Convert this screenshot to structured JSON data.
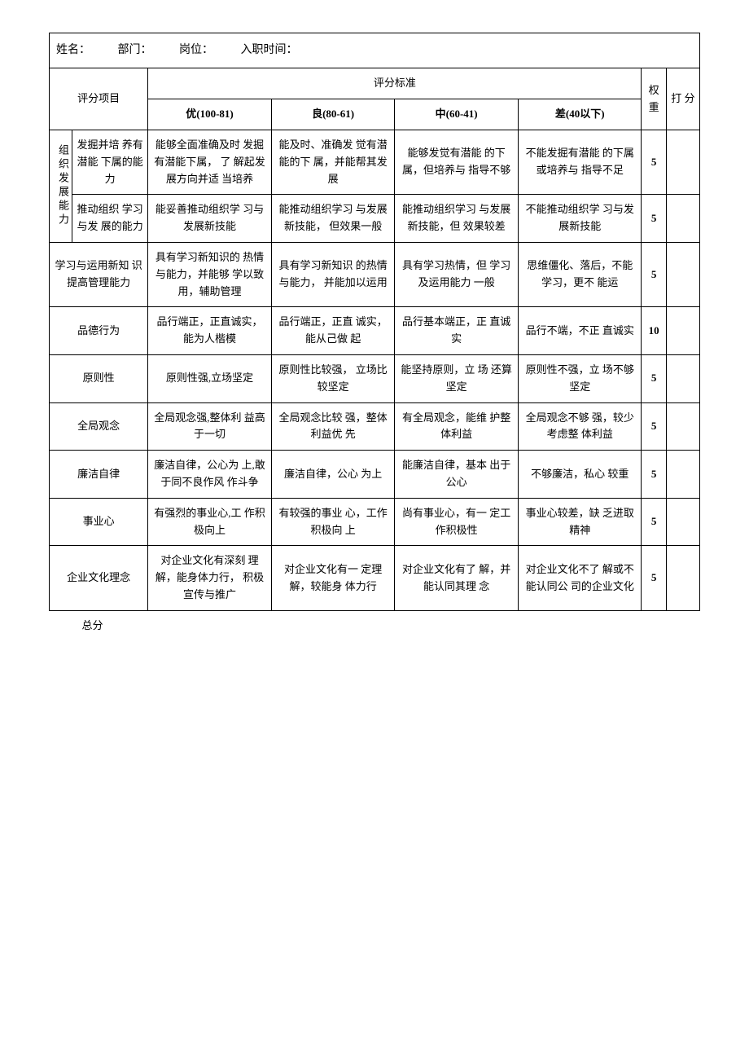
{
  "header": {
    "name_label": "姓名：",
    "dept_label": "部门：",
    "post_label": "岗位：",
    "hire_label": "入职时间："
  },
  "columns": {
    "item": "评分项目",
    "standard": "评分标准",
    "excellent": "优(100-81)",
    "good": "良(80-61)",
    "medium": "中(60-41)",
    "poor": "差(40以下)",
    "weight": "权重",
    "score": "打 分"
  },
  "group": {
    "org_dev": "组织发展能力"
  },
  "rows": [
    {
      "item": "发掘并培 养有潜能 下属的能 力",
      "excellent": "能够全面准确及时 发掘有潜能下属， 了 解起发展方向并适 当培养",
      "good": "能及时、准确发 觉有潜能的下 属，并能帮其发 展",
      "medium": "能够发觉有潜能 的下属，但培养与 指导不够",
      "poor": "不能发掘有潜能 的下属或培养与 指导不足",
      "weight": "5"
    },
    {
      "item": "推动组织 学习与发 展的能力",
      "excellent": "能妥善推动组织学 习与发展新技能",
      "good": "能推动组织学习   与发展新技能，     但效果一般",
      "medium": "能推动组织学习 与发展新技能，但 效果较差",
      "poor": "不能推动组织学 习与发展新技能",
      "weight": "5"
    },
    {
      "item": "学习与运用新知 识提高管理能力",
      "excellent": "具有学习新知识的 热情与能力，并能够 学以致用，辅助管理",
      "good": "具有学习新知识   的热情与能力，     并能加以运用",
      "medium": "具有学习热情，但 学习及运用能力 一般",
      "poor": "思维僵化、落后，不能学习，更不 能运",
      "weight": "5"
    },
    {
      "item": "品德行为",
      "excellent": "品行端正，正直诚实，能为人楷模",
      "good": "品行端正，正直 诚实，能从己做 起",
      "medium": "品行基本端正，正 直诚实",
      "poor": "品行不端，不正 直诚实",
      "weight": "10"
    },
    {
      "item": "原则性",
      "excellent": "原则性强,立场坚定",
      "good": "原则性比较强，     立场比较坚定",
      "medium": "能坚持原则，立 场 还算坚定",
      "poor": "原则性不强，立 场不够坚定",
      "weight": "5"
    },
    {
      "item": "全局观念",
      "excellent": "全局观念强,整体利 益高于一切",
      "good": "全局观念比较 强，整体利益优 先",
      "medium": "有全局观念，能维 护整体利益",
      "poor": "全局观念不够 强，较少考虑整 体利益",
      "weight": "5"
    },
    {
      "item": "廉洁自律",
      "excellent": "廉洁自律，公心为 上,敢于同不良作风 作斗争",
      "good": "廉洁自律，公心 为上",
      "medium": "能廉洁自律，基本 出于公心",
      "poor": "不够廉洁，私心 较重",
      "weight": "5"
    },
    {
      "item": "事业心",
      "excellent": "有强烈的事业心,工 作积极向上",
      "good": "有较强的事业 心，工作积极向 上",
      "medium": "尚有事业心，有一 定工作积极性",
      "poor": "事业心较差，缺 乏进取精神",
      "weight": "5"
    },
    {
      "item": "企业文化理念",
      "excellent": "对企业文化有深刻 理解，能身体力行，    积极宣传与推广",
      "good": "对企业文化有一 定理解，较能身 体力行",
      "medium": "对企业文化有了 解，并能认同其理 念",
      "poor": "对企业文化不了 解或不能认同公 司的企业文化",
      "weight": "5"
    }
  ],
  "total_label": "总分"
}
